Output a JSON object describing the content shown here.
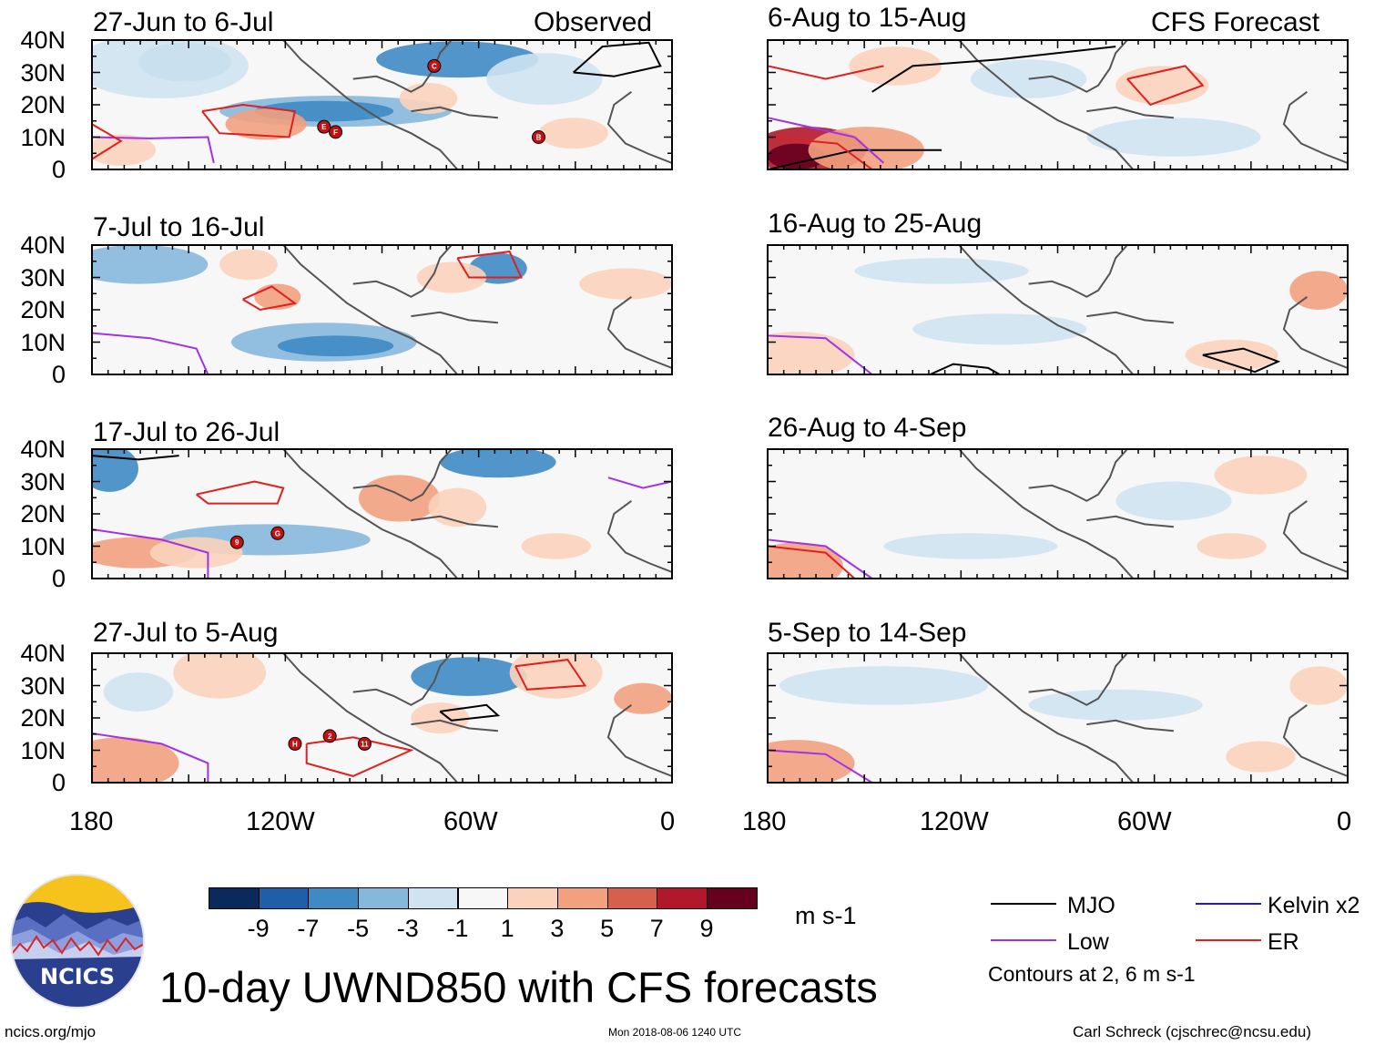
{
  "figure": {
    "title": "10-day UWND850 with CFS forecasts",
    "observed_label": "Observed",
    "forecast_label": "CFS Forecast",
    "units": "m s-1",
    "contour_note": "Contours at 2, 6 m s-1",
    "footer_left": "ncics.org/mjo",
    "footer_center": "Mon 2018-08-06 1240 UTC",
    "footer_right": "Carl Schreck (cjschrec@ncsu.edu)",
    "logo_text": "NCICS"
  },
  "axes": {
    "lat_ticks": [
      "40N",
      "30N",
      "20N",
      "10N",
      "0"
    ],
    "lon_ticks": [
      "180",
      "120W",
      "60W",
      "0"
    ]
  },
  "panels": {
    "observed": [
      {
        "title": "27-Jun to 6-Jul",
        "storm_markers": [
          "E",
          "F",
          "C",
          "B"
        ]
      },
      {
        "title": "7-Jul to 16-Jul",
        "storm_markers": []
      },
      {
        "title": "17-Jul to 26-Jul",
        "storm_markers": [
          "9",
          "G"
        ]
      },
      {
        "title": "27-Jul to 5-Aug",
        "storm_markers": [
          "H",
          "2",
          "11"
        ]
      }
    ],
    "forecast": [
      {
        "title": "6-Aug to 15-Aug"
      },
      {
        "title": "16-Aug to 25-Aug"
      },
      {
        "title": "26-Aug to 4-Sep"
      },
      {
        "title": "5-Sep to 14-Sep"
      }
    ]
  },
  "colorbar": {
    "labels": [
      "-9",
      "-7",
      "-5",
      "-3",
      "-1",
      "1",
      "3",
      "5",
      "7",
      "9"
    ],
    "colors": [
      "#0b2a5c",
      "#1f5ea8",
      "#3f8ac4",
      "#86b8dc",
      "#cfe3f1",
      "#f7f7f7",
      "#fbd3bd",
      "#f2a07e",
      "#d6604d",
      "#b2182b",
      "#67001f"
    ]
  },
  "legend": [
    {
      "label": "MJO",
      "color": "#000000"
    },
    {
      "label": "Kelvin x2",
      "color": "#1a1adb"
    },
    {
      "label": "Low",
      "color": "#a033e6"
    },
    {
      "label": "ER",
      "color": "#e01f1f"
    }
  ]
}
